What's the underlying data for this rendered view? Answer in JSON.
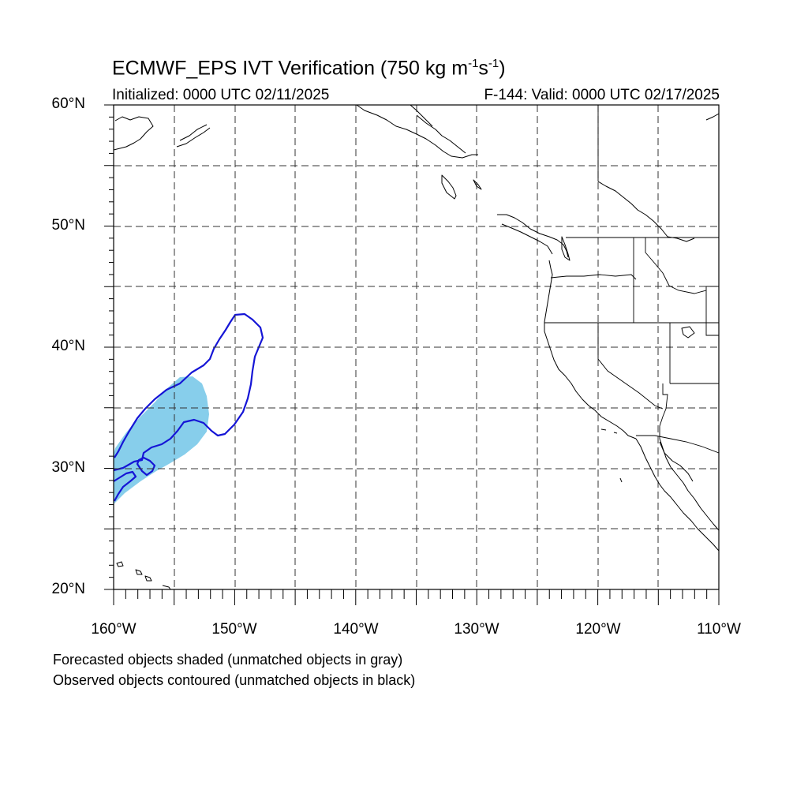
{
  "title": {
    "main": "ECMWF_EPS IVT Verification (750 kg m",
    "sup1": "-1",
    "mid": "s",
    "sup2": "-1",
    "end": ")"
  },
  "subtitle_left": "Initialized: 0000 UTC 02/11/2025",
  "subtitle_right": "F-144: Valid: 0000 UTC 02/17/2025",
  "lat_labels": [
    "60°N",
    "50°N",
    "40°N",
    "30°N",
    "20°N"
  ],
  "lon_labels": [
    "160°W",
    "150°W",
    "140°W",
    "130°W",
    "120°W",
    "110°W"
  ],
  "notes": [
    "Forecasted objects shaded (unmatched objects in gray)",
    "Observed objects contoured (unmatched objects in black)"
  ],
  "colors": {
    "forecast_shade": "#87ceeb",
    "observed_contour": "#1515d6",
    "coastline": "#000000",
    "grid": "#333333"
  },
  "map_extent": {
    "lon_min": -160,
    "lon_max": -110,
    "lat_min": 20,
    "lat_max": 60
  }
}
